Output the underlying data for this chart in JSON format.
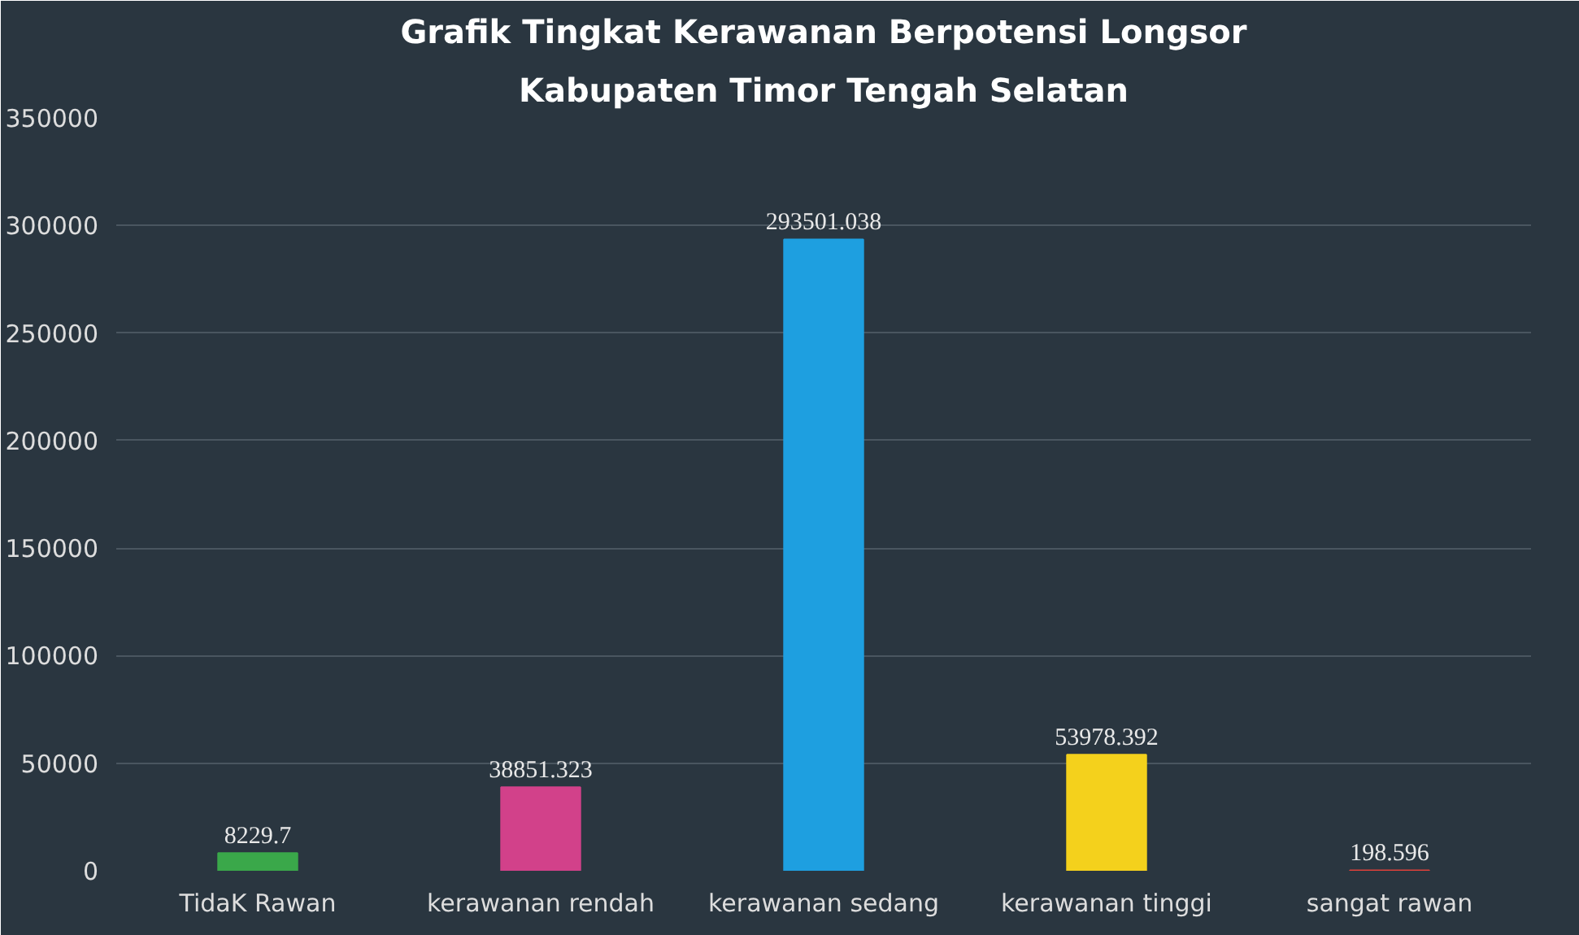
{
  "chart_data": {
    "type": "bar",
    "title": "Grafik Tingkat Kerawanan Berpotensi Longsor",
    "subtitle": "Kabupaten Timor Tengah Selatan",
    "categories": [
      "TidaK Rawan",
      "kerawanan rendah",
      "kerawanan sedang",
      "kerawanan tinggi",
      "sangat rawan"
    ],
    "values": [
      8229.7,
      38851.323,
      293501.038,
      53978.392,
      198.596
    ],
    "colors": [
      "#3aa84a",
      "#d2418a",
      "#1e9fe0",
      "#f4d11c",
      "#e0403a"
    ],
    "ylim": [
      0,
      350000
    ],
    "yticks": [
      0,
      50000,
      100000,
      150000,
      200000,
      250000,
      300000,
      350000
    ],
    "grid": "y",
    "data_labels": true
  }
}
